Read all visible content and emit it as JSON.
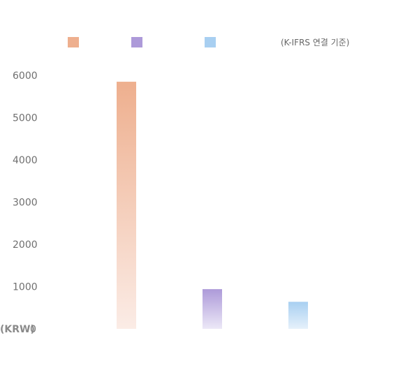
{
  "chart_data": {
    "type": "bar",
    "note": "(K-IFRS 연결 기준)",
    "unit": "(KRW)",
    "ylim": [
      0,
      6000
    ],
    "yticks": [
      "0",
      "1000",
      "2000",
      "3000",
      "4000",
      "5000",
      "6000"
    ],
    "legend_position": "top",
    "grid": false,
    "series": [
      {
        "values": [
          5850
        ],
        "color_top": "#eeaf8e",
        "color_bottom": "#fbece6"
      },
      {
        "values": [
          940
        ],
        "color_top": "#ad9ad9",
        "color_bottom": "#ece8f7"
      },
      {
        "values": [
          640
        ],
        "color_top": "#a8cff1",
        "color_bottom": "#e6f1fb"
      }
    ]
  }
}
